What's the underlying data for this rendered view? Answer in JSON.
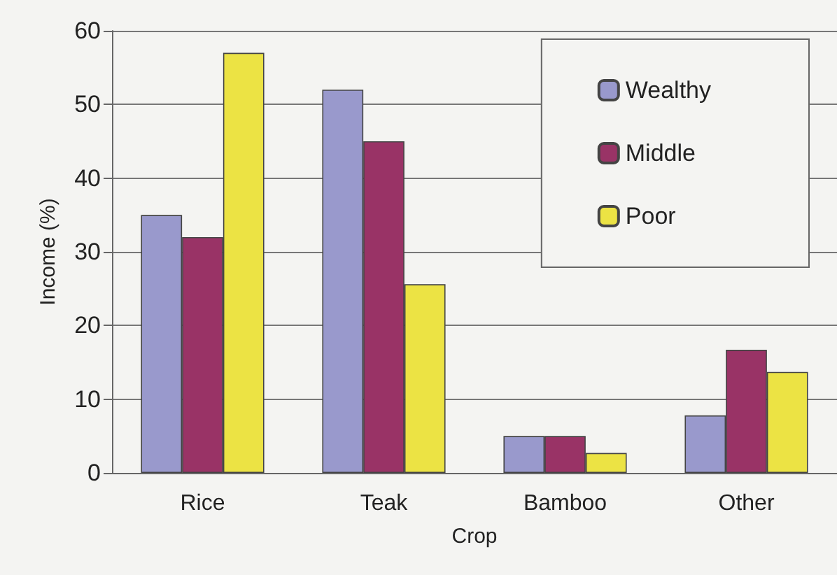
{
  "chart_data": {
    "type": "bar",
    "xlabel": "Crop",
    "ylabel": "Income (%)",
    "categories": [
      "Rice",
      "Teak",
      "Bamboo",
      "Other"
    ],
    "series": [
      {
        "name": "Wealthy",
        "color": "#9999cc",
        "values": [
          35,
          52,
          5,
          7.8
        ]
      },
      {
        "name": "Middle",
        "color": "#993366",
        "values": [
          32,
          45,
          5,
          16.7
        ]
      },
      {
        "name": "Poor",
        "color": "#ece344",
        "values": [
          57,
          25.6,
          2.7,
          13.7
        ]
      }
    ],
    "ylim": [
      0,
      60
    ],
    "yticks": [
      0,
      10,
      20,
      30,
      40,
      50,
      60
    ],
    "grid": "y",
    "legend": "top right"
  }
}
